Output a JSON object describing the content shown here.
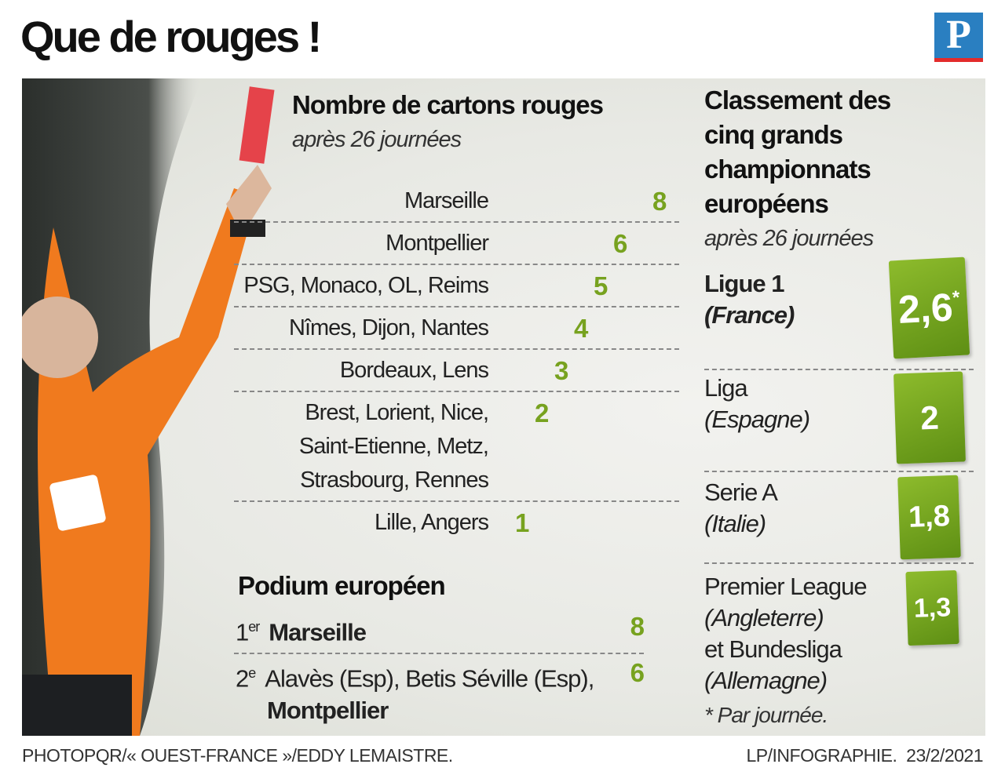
{
  "header": {
    "title": "Que de rouges !",
    "logo": "P"
  },
  "chart_data": {
    "type": "bar",
    "title": "Nombre de cartons rouges",
    "subtitle": "après 26 journées",
    "categories": [
      "Marseille",
      "Montpellier",
      "PSG, Monaco, OL, Reims",
      "Nîmes, Dijon, Nantes",
      "Bordeaux, Lens",
      "Brest, Lorient, Nice,\nSaint-Etienne, Metz,\nStrasbourg, Rennes",
      "Lille, Angers"
    ],
    "values": [
      8,
      6,
      5,
      4,
      3,
      2,
      1
    ],
    "color": "#77a21f"
  },
  "podium": {
    "title": "Podium européen",
    "rows": [
      {
        "rank": "1",
        "suffix": "er",
        "teams": "Marseille",
        "value": 8
      },
      {
        "rank": "2",
        "suffix": "e",
        "teams": "Alavès (Esp), Betis Séville (Esp),",
        "teams_bold": "Montpellier",
        "value": 6
      }
    ]
  },
  "ranking": {
    "title": "Classement des cinq grands championnats européens",
    "subtitle": "après 26 journées",
    "rows": [
      {
        "league": "Ligue 1",
        "country": "(France)",
        "value": {
          "value": 2.6,
          "label": "2,6"
        },
        "note": "*"
      },
      {
        "league": "Liga",
        "country": "(Espagne)",
        "value": 2
      },
      {
        "league": "Serie A",
        "country": "(Italie)",
        "value": {
          "value": 1.8,
          "label": "1,8"
        }
      },
      {
        "league": "Premier League",
        "country": "(Angleterre)",
        "league2": "et Bundesliga",
        "country2": "(Allemagne)",
        "value": {
          "value": 1.3,
          "label": "1,3"
        }
      }
    ],
    "footnote": "* Par journée."
  },
  "footer": {
    "credit": "PHOTOPQR/« OUEST-FRANCE »/EDDY LEMAISTRE.",
    "source": "LP/INFOGRAPHIE.",
    "date": "23/2/2021"
  }
}
